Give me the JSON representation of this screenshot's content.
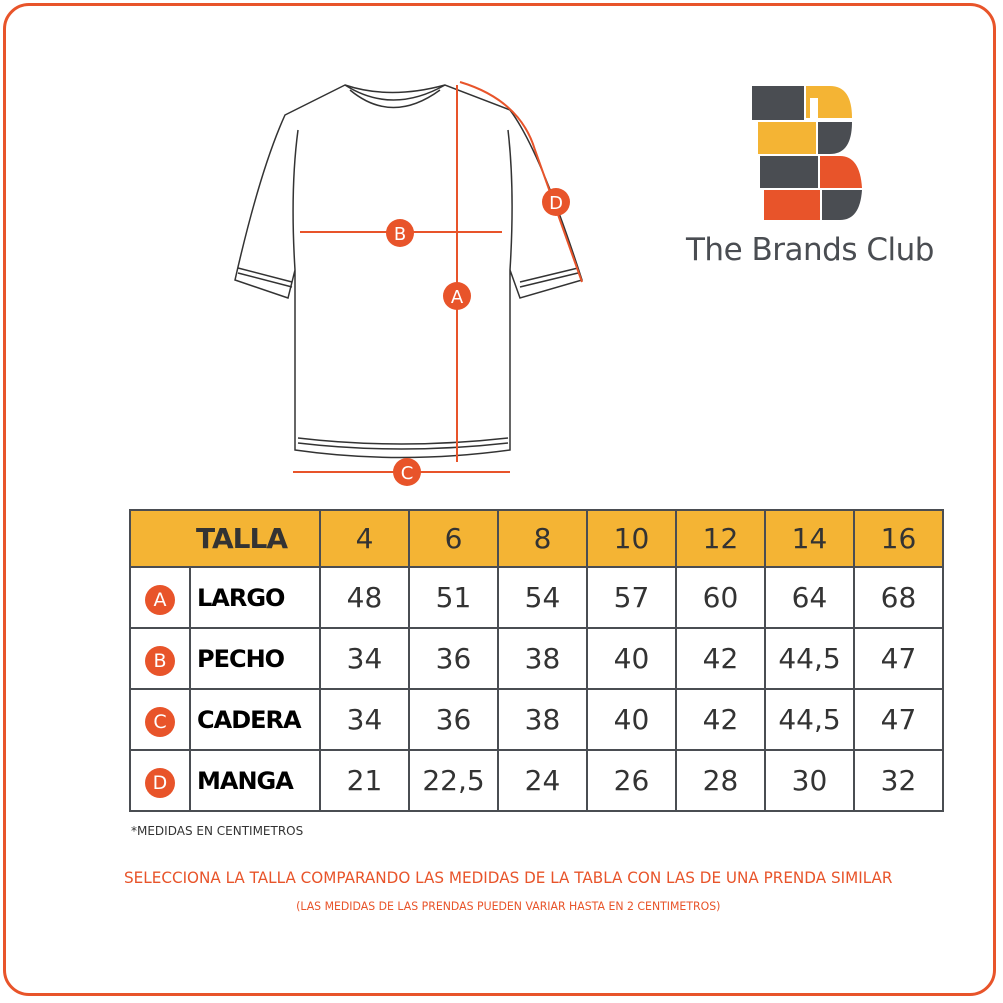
{
  "brand": {
    "name": "The Brands Club",
    "colors": {
      "orange": "#e8542a",
      "yellow": "#f4b434",
      "gray": "#4a4d52"
    }
  },
  "diagram": {
    "markers": [
      "A",
      "B",
      "C",
      "D"
    ]
  },
  "table": {
    "header_label": "TALLA",
    "sizes": [
      "4",
      "6",
      "8",
      "10",
      "12",
      "14",
      "16"
    ],
    "rows": [
      {
        "letter": "A",
        "label": "LARGO",
        "values": [
          "48",
          "51",
          "54",
          "57",
          "60",
          "64",
          "68"
        ]
      },
      {
        "letter": "B",
        "label": "PECHO",
        "values": [
          "34",
          "36",
          "38",
          "40",
          "42",
          "44,5",
          "47"
        ]
      },
      {
        "letter": "C",
        "label": "CADERA",
        "values": [
          "34",
          "36",
          "38",
          "40",
          "42",
          "44,5",
          "47"
        ]
      },
      {
        "letter": "D",
        "label": "MANGA",
        "values": [
          "21",
          "22,5",
          "24",
          "26",
          "28",
          "30",
          "32"
        ]
      }
    ]
  },
  "footer": {
    "note": "*MEDIDAS EN CENTIMETROS",
    "instruction": "SELECCIONA LA TALLA COMPARANDO LAS MEDIDAS DE LA TABLA CON LAS DE UNA PRENDA SIMILAR",
    "disclaimer": "(LAS MEDIDAS DE LAS PRENDAS PUEDEN VARIAR HASTA EN 2 CENTIMETROS)"
  }
}
